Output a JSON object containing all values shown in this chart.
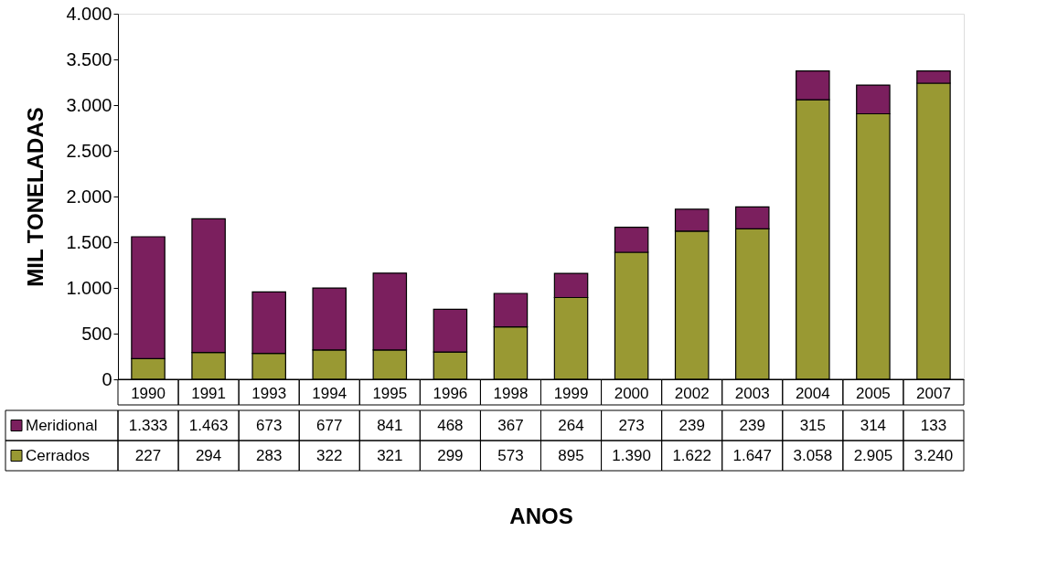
{
  "chart_data": {
    "type": "bar",
    "stacked": true,
    "xlabel": "ANOS",
    "ylabel": "MIL TONELADAS",
    "categories": [
      "1990",
      "1991",
      "1993",
      "1994",
      "1995",
      "1996",
      "1998",
      "1999",
      "2000",
      "2002",
      "2003",
      "2004",
      "2005",
      "2007"
    ],
    "series": [
      {
        "name": "Cerrados",
        "color": "#999933",
        "values": [
          227,
          294,
          283,
          322,
          321,
          299,
          573,
          895,
          1390,
          1622,
          1647,
          3058,
          2905,
          3240
        ],
        "value_labels": [
          "227",
          "294",
          "283",
          "322",
          "321",
          "299",
          "573",
          "895",
          "1.390",
          "1.622",
          "1.647",
          "3.058",
          "2.905",
          "3.240"
        ]
      },
      {
        "name": "Meridional",
        "color": "#7b1f5e",
        "values": [
          1333,
          1463,
          673,
          677,
          841,
          468,
          367,
          264,
          273,
          239,
          239,
          315,
          314,
          133
        ],
        "value_labels": [
          "1.333",
          "1.463",
          "673",
          "677",
          "841",
          "468",
          "367",
          "264",
          "273",
          "239",
          "239",
          "315",
          "314",
          "133"
        ]
      }
    ],
    "ylim": [
      0,
      4000
    ],
    "yticks": [
      0,
      500,
      {
        "value": 1000,
        "label": "1.000"
      },
      {
        "value": 1500,
        "label": "1.500"
      },
      {
        "value": 2000,
        "label": "2.000"
      },
      {
        "value": 2500,
        "label": "2.500"
      },
      {
        "value": 3000,
        "label": "3.000"
      },
      {
        "value": 3500,
        "label": "3.500"
      },
      {
        "value": 4000,
        "label": "4.000"
      }
    ],
    "grid": false,
    "legend": "bottom left"
  }
}
